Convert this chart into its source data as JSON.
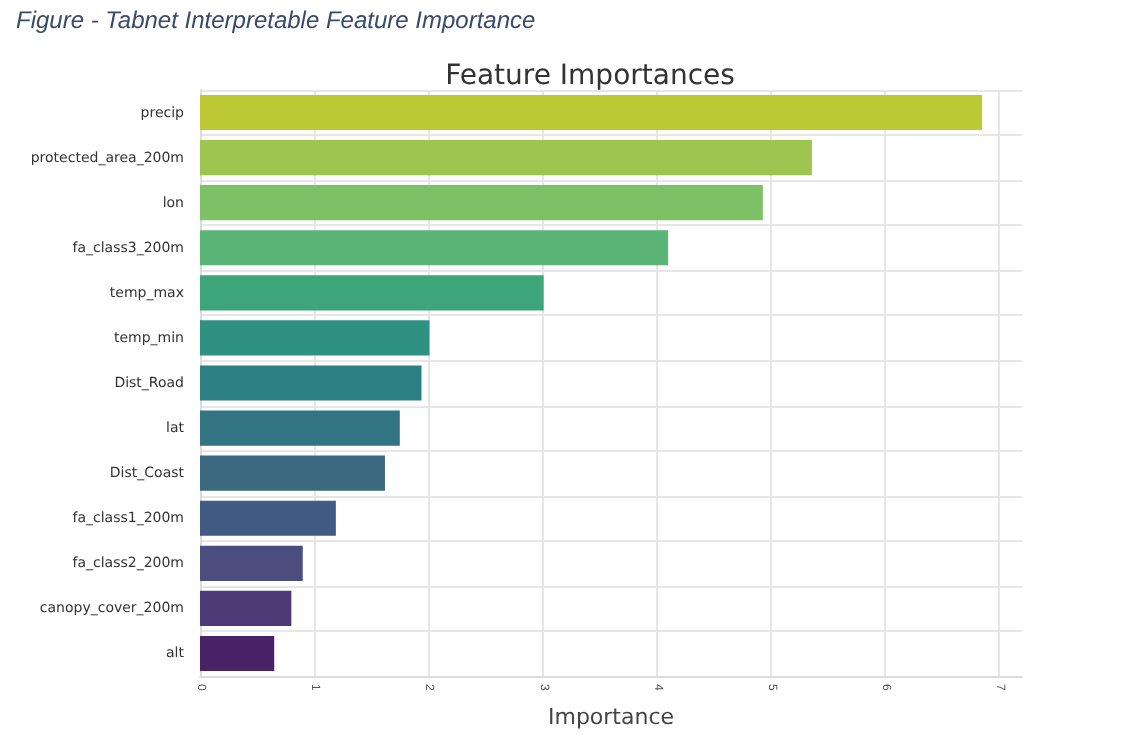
{
  "chart_data": {
    "type": "bar",
    "orientation": "horizontal",
    "title": "Feature Importances",
    "xlabel": "Importance",
    "annotations": [
      "Figure  - Tabnet Interpretable Feature Importance"
    ],
    "categories": [
      "precip",
      "protected_area_200m",
      "lon",
      "fa_class3_200m",
      "temp_max",
      "temp_min",
      "Dist_Road",
      "lat",
      "Dist_Coast",
      "fa_class1_200m",
      "fa_class2_200m",
      "canopy_cover_200m",
      "alt"
    ],
    "values": [
      6.85,
      5.36,
      4.93,
      4.1,
      3.01,
      2.01,
      1.94,
      1.75,
      1.62,
      1.19,
      0.9,
      0.8,
      0.65
    ],
    "colors": [
      "#bdc934",
      "#9dc550",
      "#7cc165",
      "#5ab476",
      "#3ea47a",
      "#2e9182",
      "#2c7f82",
      "#337482",
      "#3b6a80",
      "#425b82",
      "#4a4d7e",
      "#4c3b76",
      "#4a2367"
    ],
    "xlim": [
      0,
      7.2
    ],
    "xticks": [
      0,
      1,
      2,
      3,
      4,
      5,
      6,
      7
    ],
    "grid": true
  }
}
